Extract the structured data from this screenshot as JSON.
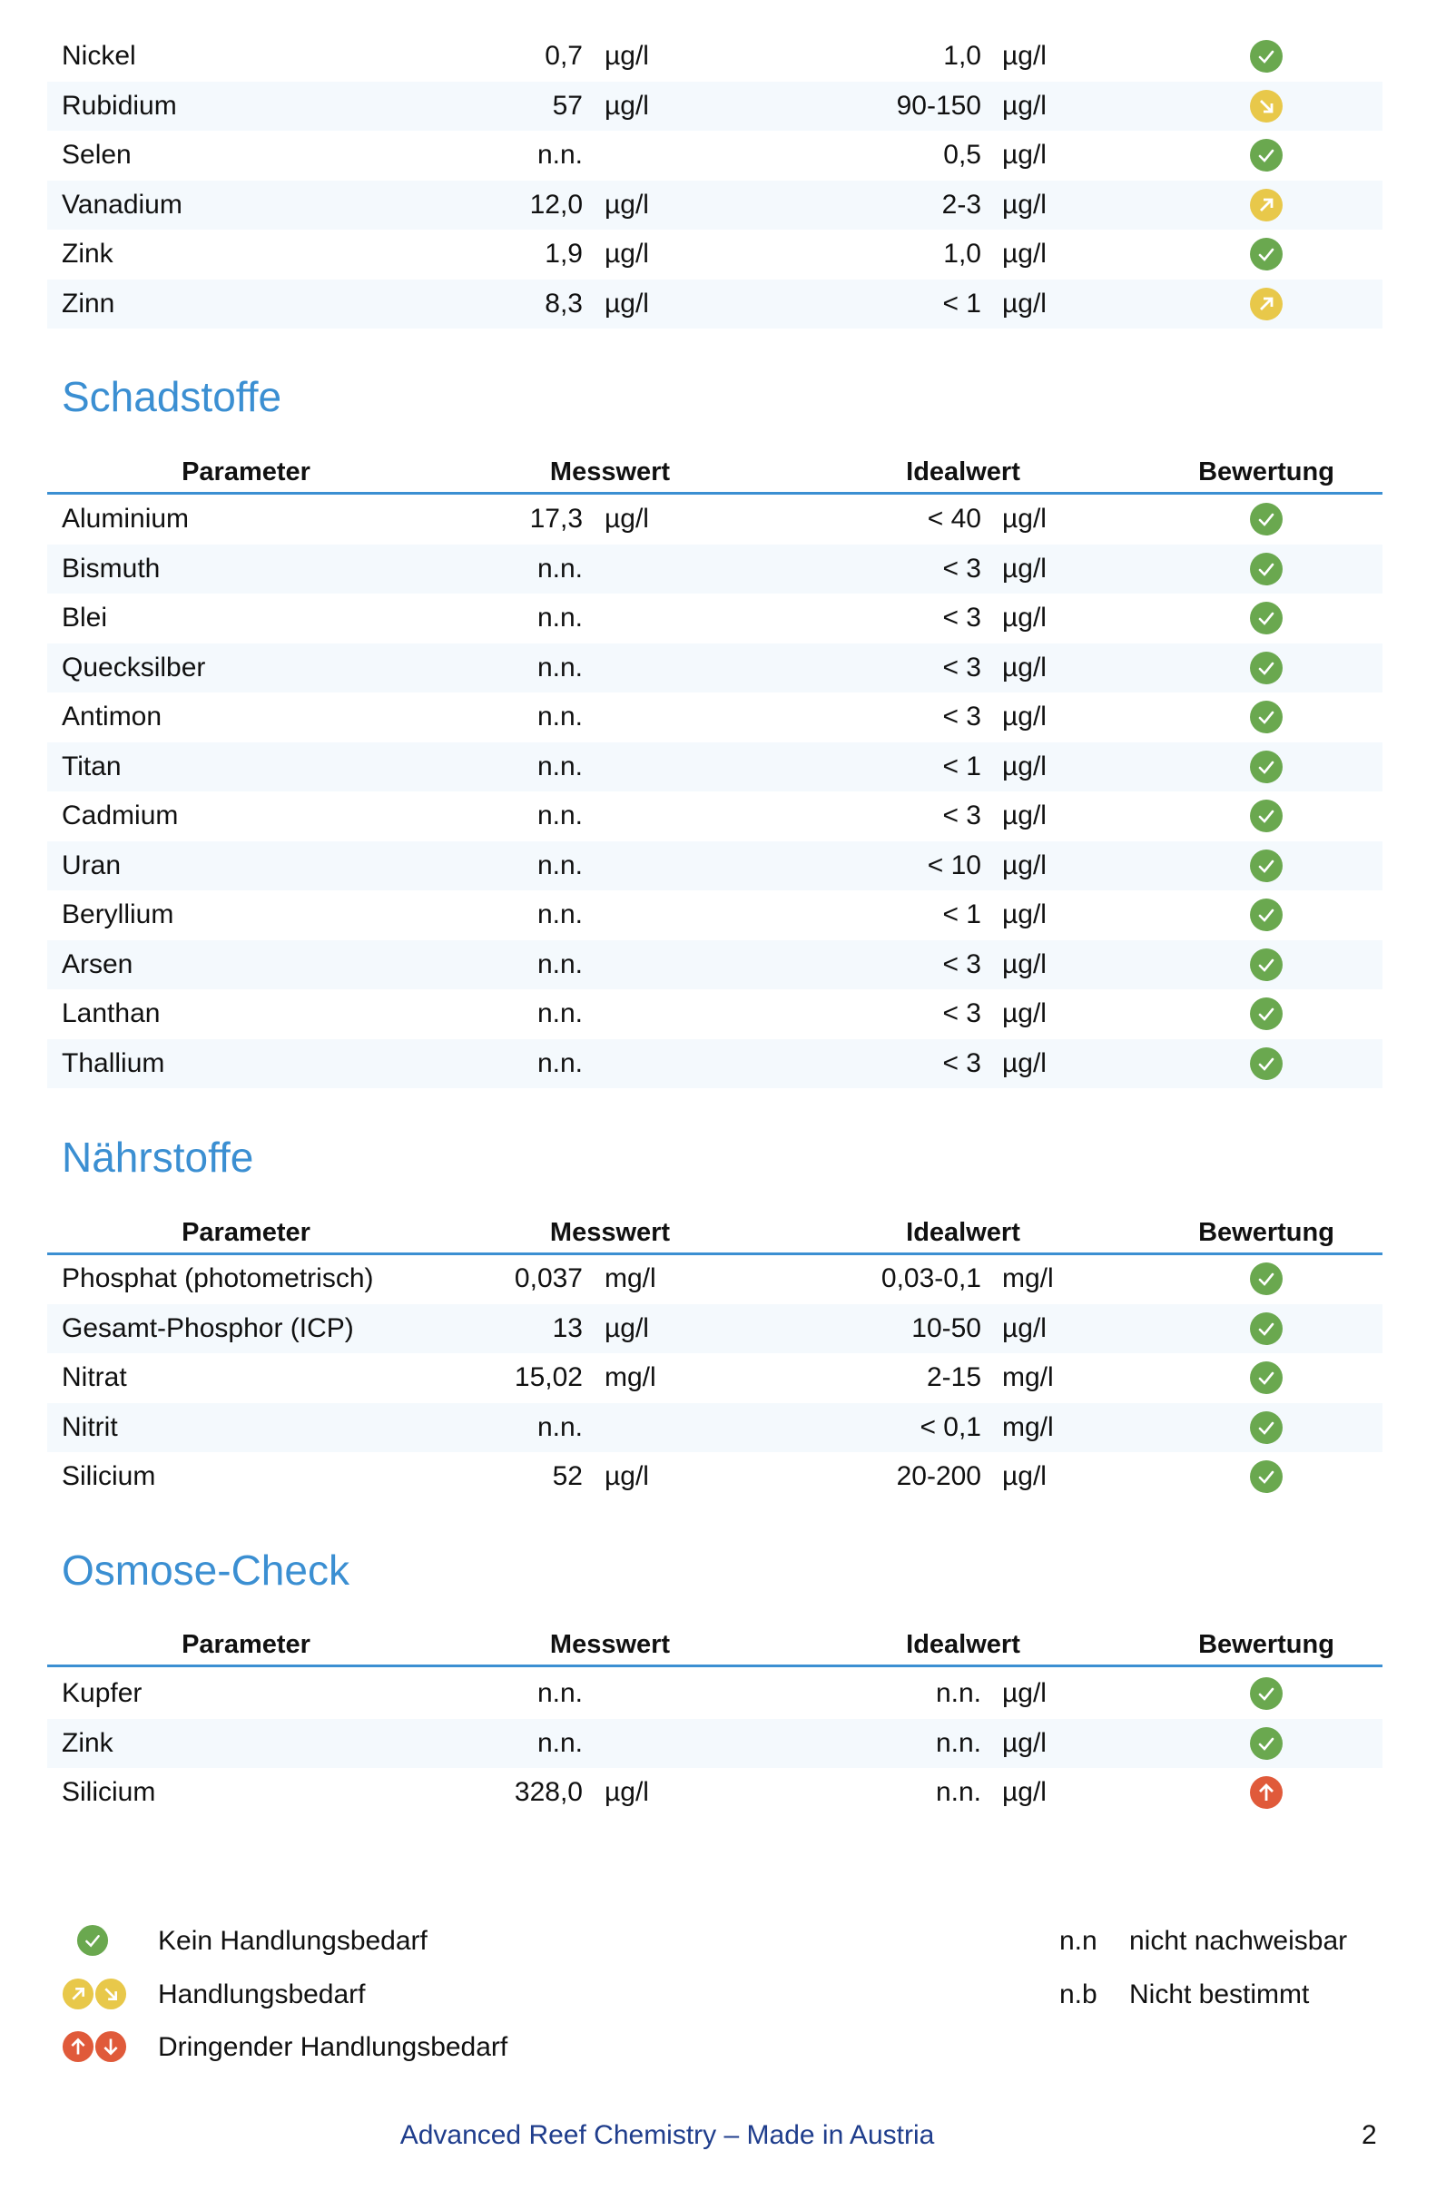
{
  "colors": {
    "accent": "#3b8fd2",
    "ok": "#6aa84f",
    "warn": "#e8c84a",
    "alert": "#e05a3a",
    "footer": "#1f3d8c"
  },
  "columns": {
    "parameter": "Parameter",
    "messwert": "Messwert",
    "idealwert": "Idealwert",
    "bewertung": "Bewertung"
  },
  "sections": [
    {
      "title": "",
      "rows": [
        {
          "name": "Nickel",
          "value": "0,7",
          "unit": "µg/l",
          "ideal": "1,0",
          "ideal_unit": "µg/l",
          "status": "ok"
        },
        {
          "name": "Rubidium",
          "value": "57",
          "unit": "µg/l",
          "ideal": "90-150",
          "ideal_unit": "µg/l",
          "status": "down-warn"
        },
        {
          "name": "Selen",
          "value": "n.n.",
          "unit": "",
          "ideal": "0,5",
          "ideal_unit": "µg/l",
          "status": "ok"
        },
        {
          "name": "Vanadium",
          "value": "12,0",
          "unit": "µg/l",
          "ideal": "2-3",
          "ideal_unit": "µg/l",
          "status": "up-warn"
        },
        {
          "name": "Zink",
          "value": "1,9",
          "unit": "µg/l",
          "ideal": "1,0",
          "ideal_unit": "µg/l",
          "status": "ok"
        },
        {
          "name": "Zinn",
          "value": "8,3",
          "unit": "µg/l",
          "ideal": "< 1",
          "ideal_unit": "µg/l",
          "status": "up-warn"
        }
      ]
    },
    {
      "title": "Schadstoffe",
      "rows": [
        {
          "name": "Aluminium",
          "value": "17,3",
          "unit": "µg/l",
          "ideal": "< 40",
          "ideal_unit": "µg/l",
          "status": "ok"
        },
        {
          "name": "Bismuth",
          "value": "n.n.",
          "unit": "",
          "ideal": "< 3",
          "ideal_unit": "µg/l",
          "status": "ok"
        },
        {
          "name": "Blei",
          "value": "n.n.",
          "unit": "",
          "ideal": "< 3",
          "ideal_unit": "µg/l",
          "status": "ok"
        },
        {
          "name": "Quecksilber",
          "value": "n.n.",
          "unit": "",
          "ideal": "< 3",
          "ideal_unit": "µg/l",
          "status": "ok"
        },
        {
          "name": "Antimon",
          "value": "n.n.",
          "unit": "",
          "ideal": "< 3",
          "ideal_unit": "µg/l",
          "status": "ok"
        },
        {
          "name": "Titan",
          "value": "n.n.",
          "unit": "",
          "ideal": "< 1",
          "ideal_unit": "µg/l",
          "status": "ok"
        },
        {
          "name": "Cadmium",
          "value": "n.n.",
          "unit": "",
          "ideal": "< 3",
          "ideal_unit": "µg/l",
          "status": "ok"
        },
        {
          "name": "Uran",
          "value": "n.n.",
          "unit": "",
          "ideal": "< 10",
          "ideal_unit": "µg/l",
          "status": "ok"
        },
        {
          "name": "Beryllium",
          "value": "n.n.",
          "unit": "",
          "ideal": "< 1",
          "ideal_unit": "µg/l",
          "status": "ok"
        },
        {
          "name": "Arsen",
          "value": "n.n.",
          "unit": "",
          "ideal": "< 3",
          "ideal_unit": "µg/l",
          "status": "ok"
        },
        {
          "name": "Lanthan",
          "value": "n.n.",
          "unit": "",
          "ideal": "< 3",
          "ideal_unit": "µg/l",
          "status": "ok"
        },
        {
          "name": "Thallium",
          "value": "n.n.",
          "unit": "",
          "ideal": "< 3",
          "ideal_unit": "µg/l",
          "status": "ok"
        }
      ]
    },
    {
      "title": "Nährstoffe",
      "rows": [
        {
          "name": "Phosphat (photometrisch)",
          "value": "0,037",
          "unit": "mg/l",
          "ideal": "0,03-0,1",
          "ideal_unit": "mg/l",
          "status": "ok"
        },
        {
          "name": "Gesamt-Phosphor (ICP)",
          "value": "13",
          "unit": "µg/l",
          "ideal": "10-50",
          "ideal_unit": "µg/l",
          "status": "ok"
        },
        {
          "name": "Nitrat",
          "value": "15,02",
          "unit": "mg/l",
          "ideal": "2-15",
          "ideal_unit": "mg/l",
          "status": "ok"
        },
        {
          "name": "Nitrit",
          "value": "n.n.",
          "unit": "",
          "ideal": "< 0,1",
          "ideal_unit": "mg/l",
          "status": "ok"
        },
        {
          "name": "Silicium",
          "value": "52",
          "unit": "µg/l",
          "ideal": "20-200",
          "ideal_unit": "µg/l",
          "status": "ok"
        }
      ]
    },
    {
      "title": "Osmose-Check",
      "rows": [
        {
          "name": "Kupfer",
          "value": "n.n.",
          "unit": "",
          "ideal": "n.n.",
          "ideal_unit": "µg/l",
          "status": "ok"
        },
        {
          "name": "Zink",
          "value": "n.n.",
          "unit": "",
          "ideal": "n.n.",
          "ideal_unit": "µg/l",
          "status": "ok"
        },
        {
          "name": "Silicium",
          "value": "328,0",
          "unit": "µg/l",
          "ideal": "n.n.",
          "ideal_unit": "µg/l",
          "status": "up-alert"
        }
      ]
    }
  ],
  "legend": {
    "ok": "Kein Handlungsbedarf",
    "warn": "Handlungsbedarf",
    "alert": "Dringender Handlungsbedarf",
    "nn_abbr": "n.n",
    "nn_text": "nicht nachweisbar",
    "nb_abbr": "n.b",
    "nb_text": "Nicht bestimmt"
  },
  "footer": {
    "text": "Advanced Reef Chemistry – Made in Austria",
    "page": "2"
  }
}
